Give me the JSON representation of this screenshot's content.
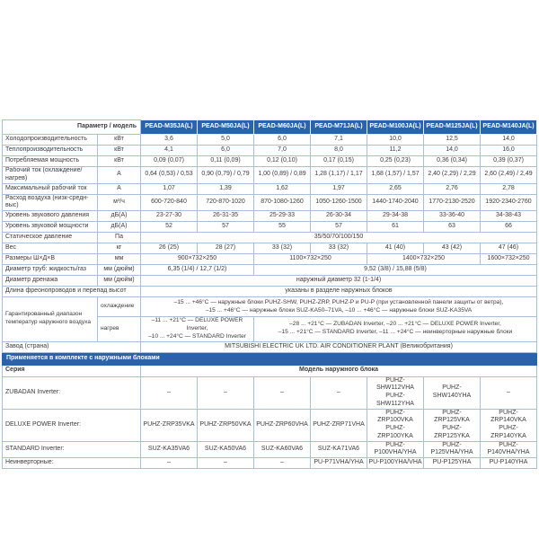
{
  "table": {
    "header": {
      "param_label": "Параметр / модель",
      "models": [
        "PEAD-M35JA(L)",
        "PEAD-M50JA(L)",
        "PEAD-M60JA(L)",
        "PEAD-M71JA(L)",
        "PEAD-M100JA(L)",
        "PEAD-M125JA(L)",
        "PEAD-M140JA(L)"
      ]
    },
    "rows": [
      {
        "type": "simple",
        "label": "Холодопроизводительность",
        "unit": "кВт",
        "values": [
          "3,6",
          "5,0",
          "6,0",
          "7,1",
          "10,0",
          "12,5",
          "14,0"
        ]
      },
      {
        "type": "simple",
        "label": "Теплопроизводительность",
        "unit": "кВт",
        "values": [
          "4,1",
          "6,0",
          "7,0",
          "8,0",
          "11,2",
          "14,0",
          "16,0"
        ]
      },
      {
        "type": "simple",
        "label": "Потребляемая мощность",
        "unit": "кВт",
        "values": [
          "0,09 (0,07)",
          "0,11 (0,09)",
          "0,12 (0,10)",
          "0,17 (0,15)",
          "0,25 (0,23)",
          "0,36 (0,34)",
          "0,39 (0,37)"
        ]
      },
      {
        "type": "simple",
        "label": "Рабочий ток (охлаждение/нагрев)",
        "unit": "А",
        "values": [
          "0,64 (0,53) / 0,53",
          "0,90 (0,79) / 0,79",
          "1,00 (0,89) / 0,89",
          "1,28 (1,17) / 1,17",
          "1,68 (1,57) / 1,57",
          "2,40 (2,29) / 2,29",
          "2,60 (2,49) / 2,49"
        ]
      },
      {
        "type": "simple",
        "label": "Максимальный рабочий ток",
        "unit": "А",
        "values": [
          "1,07",
          "1,39",
          "1,62",
          "1,97",
          "2,65",
          "2,76",
          "2,78"
        ]
      },
      {
        "type": "simple",
        "label": "Расход воздуха (низк-средн-выс)",
        "unit": "м³/ч",
        "values": [
          "600-720-840",
          "720-870-1020",
          "870-1080-1260",
          "1050-1260-1500",
          "1440-1740-2040",
          "1770-2130-2520",
          "1920-2340-2760"
        ]
      },
      {
        "type": "simple",
        "label": "Уровень звукового давления",
        "unit": "дБ(А)",
        "values": [
          "23-27-30",
          "26-31-35",
          "25-29-33",
          "26-30-34",
          "29-34-38",
          "33-36-40",
          "34-38-43"
        ]
      },
      {
        "type": "simple",
        "label": "Уровень звуковой мощности",
        "unit": "дБ(А)",
        "values": [
          "52",
          "57",
          "55",
          "57",
          "61",
          "63",
          "66"
        ]
      },
      {
        "type": "span",
        "label": "Статическое давление",
        "unit": "Па",
        "cells": [
          {
            "span": 7,
            "text": "35/50/70/100/150"
          }
        ]
      },
      {
        "type": "simple",
        "label": "Вес",
        "unit": "кг",
        "values": [
          "26 (25)",
          "28 (27)",
          "33 (32)",
          "33 (32)",
          "41 (40)",
          "43 (42)",
          "47 (46)"
        ]
      },
      {
        "type": "span",
        "label": "Размеры Ш×Д×В",
        "unit": "мм",
        "cells": [
          {
            "span": 2,
            "text": "900×732×250"
          },
          {
            "span": 2,
            "text": "1100×732×250"
          },
          {
            "span": 2,
            "text": "1400×732×250"
          },
          {
            "span": 1,
            "text": "1600×732×250"
          }
        ]
      },
      {
        "type": "span",
        "label": "Диаметр труб: жидкость/газ",
        "unit": "мм (дюйм)",
        "cells": [
          {
            "span": 2,
            "text": "6,35 (1/4) / 12,7 (1/2)"
          },
          {
            "span": 5,
            "text": "9,52 (3/8) / 15,88 (5/8)"
          }
        ]
      },
      {
        "type": "span",
        "label": "Диаметр дренажа",
        "unit": "мм (дюйм)",
        "cells": [
          {
            "span": 7,
            "text": "наружный диаметр 32 (1-1/4)"
          }
        ]
      },
      {
        "type": "wide",
        "label": "Длина фреонопроводов и перепад высот",
        "cells": [
          {
            "span": 7,
            "lines": [
              "указаны в разделе наружных блоков"
            ]
          }
        ]
      },
      {
        "type": "temp",
        "label": "Гарантированный диапазон температур наружного воздуха",
        "subrows": [
          {
            "sublabel": "охлаждение",
            "cells": [
              {
                "span": 7,
                "lines": [
                  "–15 ... +46°C — наружные блоки PUHZ-SHW, PUHZ-ZRP, PUHZ-P и PU-P (при установленной панели защиты от ветра),",
                  "–15 ... +46°C — наружные блоки SUZ-KA50–71VA, –10 ... +46°C — наружные блоки SUZ-KA35VA"
                ]
              }
            ]
          },
          {
            "sublabel": "нагрев",
            "cells": [
              {
                "span": 2,
                "lines": [
                  "–11 ... +21°C — DELUXE POWER Inverter,",
                  "–10 ... +24°C — STANDARD Inverter"
                ]
              },
              {
                "span": 5,
                "lines": [
                  "–28 ... +21°C — ZUBADAN Inverter, –20 ... +21°C — DELUXE POWER Inverter,",
                  "–15 ... +21°C — STANDARD Inverter, –11 ... +24°C — неинверторные наружные блоки"
                ]
              }
            ]
          }
        ]
      },
      {
        "type": "wide",
        "label": "Завод (страна)",
        "cells": [
          {
            "span": 7,
            "lines": [
              "MITSUBISHI ELECTRIC UK LTD. AIR CONDITIONER PLANT (Великобритания)"
            ]
          }
        ]
      }
    ],
    "outdoor": {
      "banner": "Применяется в комплекте с наружными блоками",
      "series_label": "Серия",
      "model_header": "Модель наружного блока",
      "rows": [
        {
          "label": "ZUBADAN Inverter:",
          "cells": [
            [
              "–"
            ],
            [
              "–"
            ],
            [
              "–"
            ],
            [
              "–"
            ],
            [
              "PUHZ-SHW112VHA",
              "PUHZ-SHW112YHA"
            ],
            [
              "PUHZ-SHW140YHA"
            ],
            [
              "–"
            ]
          ]
        },
        {
          "label": "DELUXE POWER Inverter:",
          "cells": [
            [
              "PUHZ-ZRP35VKA"
            ],
            [
              "PUHZ-ZRP50VKA"
            ],
            [
              "PUHZ-ZRP60VHA"
            ],
            [
              "PUHZ-ZRP71VHA"
            ],
            [
              "PUHZ-ZRP100VKA",
              "PUHZ-ZRP100YKA"
            ],
            [
              "PUHZ-ZRP125VKA",
              "PUHZ-ZRP125YKA"
            ],
            [
              "PUHZ-ZRP140VKA",
              "PUHZ-ZRP140YKA"
            ]
          ]
        },
        {
          "label": "STANDARD Inverter:",
          "cells": [
            [
              "SUZ-KA35VA6"
            ],
            [
              "SUZ-KA50VA6"
            ],
            [
              "SUZ-KA60VA6"
            ],
            [
              "SUZ-KA71VA6"
            ],
            [
              "PUHZ-P100VHA/YHA"
            ],
            [
              "PUHZ-P125VHA/YHA"
            ],
            [
              "PUHZ-P140VHA/YHA"
            ]
          ]
        },
        {
          "label": "Неинверторные:",
          "cells": [
            [
              "–"
            ],
            [
              "–"
            ],
            [
              "–"
            ],
            [
              "PU-P71VHA/YHA"
            ],
            [
              "PU-P100YHA/VHA"
            ],
            [
              "PU-P125YHA"
            ],
            [
              "PU-P140YHA"
            ]
          ]
        }
      ]
    },
    "colors": {
      "header_blue": "#2b62ac",
      "border": "#a9bfd9",
      "text": "#3a3a3a"
    }
  }
}
